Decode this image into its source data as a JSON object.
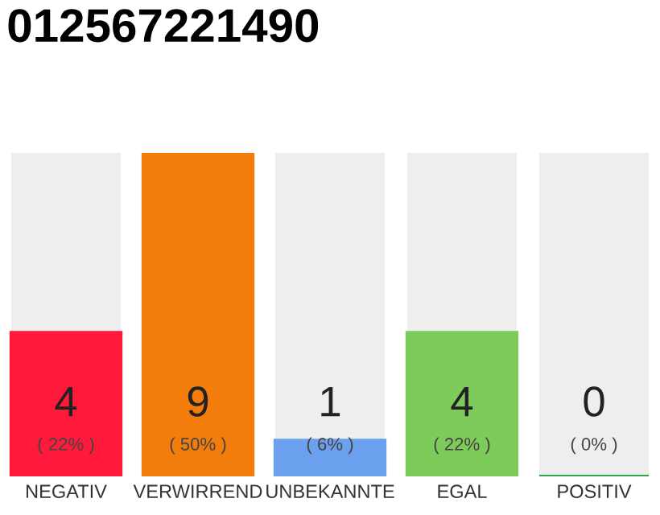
{
  "chart_data": {
    "type": "bar",
    "title": "012567221490",
    "categories": [
      "NEGATIV",
      "VERWIRREND",
      "UNBEKANNTE",
      "EGAL",
      "POSITIV"
    ],
    "values": [
      4,
      9,
      1,
      4,
      0
    ],
    "colors": [
      "#ff1a3c",
      "#f27c0c",
      "#6aa0ee",
      "#7dcb5a",
      "#2ea84f"
    ],
    "data_labels": true,
    "tick_labels": "x",
    "grid": false,
    "legend": false,
    "annotations": [
      "( 22% )",
      "( 50% )",
      "( 6% )",
      "( 22% )",
      "( 0% )"
    ]
  }
}
